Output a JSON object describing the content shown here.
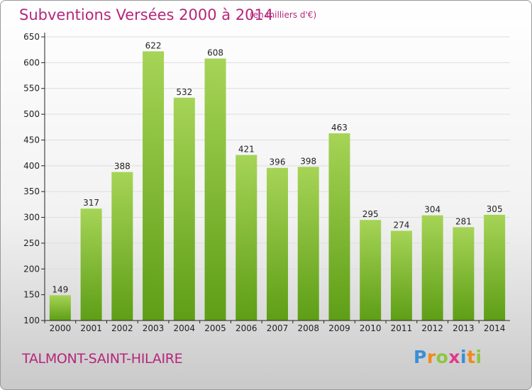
{
  "header": {
    "title": "Subventions Versées 2000 à 2014",
    "subtitle": "(en milliers d'€)"
  },
  "commune": "TALMONT-SAINT-HILAIRE",
  "logo": {
    "text": "Proxiti",
    "letters": [
      "P",
      "r",
      "o",
      "x",
      "i",
      "t",
      "i"
    ]
  },
  "colors": {
    "title": "#b5267a",
    "bar_top": "#a6d456",
    "bar_bottom": "#5e9e16",
    "grid": "#dddddd",
    "axis": "#222222"
  },
  "chart_data": {
    "type": "bar",
    "title": "Subventions Versées 2000 à 2014",
    "subtitle": "(en milliers d'€)",
    "xlabel": "",
    "ylabel": "",
    "categories": [
      "2000",
      "2001",
      "2002",
      "2003",
      "2004",
      "2005",
      "2006",
      "2007",
      "2008",
      "2009",
      "2010",
      "2011",
      "2012",
      "2013",
      "2014"
    ],
    "values": [
      149,
      317,
      388,
      622,
      532,
      608,
      421,
      396,
      398,
      463,
      295,
      274,
      304,
      281,
      305
    ],
    "ylim": [
      100,
      650
    ],
    "yticks": [
      100,
      150,
      200,
      250,
      300,
      350,
      400,
      450,
      500,
      550,
      600,
      650
    ],
    "grid": true,
    "data_labels": true
  }
}
